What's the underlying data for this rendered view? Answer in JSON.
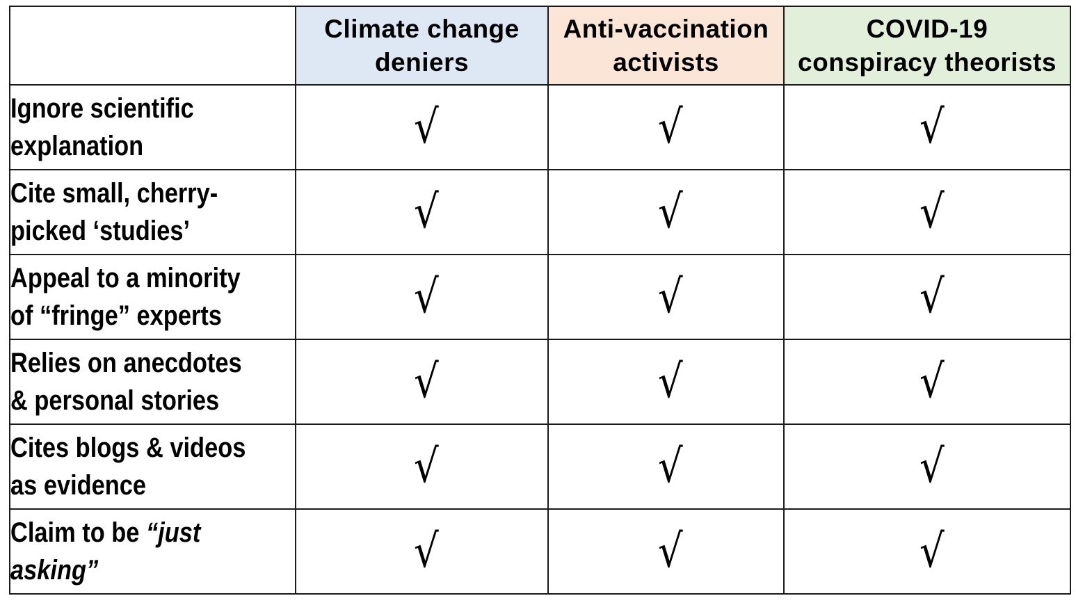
{
  "table": {
    "columns": [
      {
        "label_lines": [
          "Climate change",
          "deniers"
        ],
        "background": "#dee8f5"
      },
      {
        "label_lines": [
          "Anti-vaccination",
          "activists"
        ],
        "background": "#fbe5d7"
      },
      {
        "label_lines": [
          "COVID-19",
          "conspiracy theorists"
        ],
        "background": "#e2efda"
      }
    ],
    "rows": [
      {
        "label_lines": [
          "Ignore scientific",
          "explanation"
        ],
        "checks": [
          "√",
          "√",
          "√"
        ]
      },
      {
        "label_lines": [
          "Cite small, cherry-",
          "picked ‘studies’"
        ],
        "checks": [
          "√",
          "√",
          "√"
        ]
      },
      {
        "label_lines": [
          "Appeal to a minority",
          "of “fringe” experts"
        ],
        "checks": [
          "√",
          "√",
          "√"
        ]
      },
      {
        "label_lines": [
          "Relies on anecdotes",
          "& personal stories"
        ],
        "checks": [
          "√",
          "√",
          "√"
        ]
      },
      {
        "label_lines": [
          "Cites blogs & videos",
          "as evidence"
        ],
        "checks": [
          "√",
          "√",
          "√"
        ]
      },
      {
        "label_plain": "Claim to be ",
        "label_italic_lines": [
          "“just",
          "asking”"
        ],
        "checks": [
          "√",
          "√",
          "√"
        ]
      }
    ]
  }
}
